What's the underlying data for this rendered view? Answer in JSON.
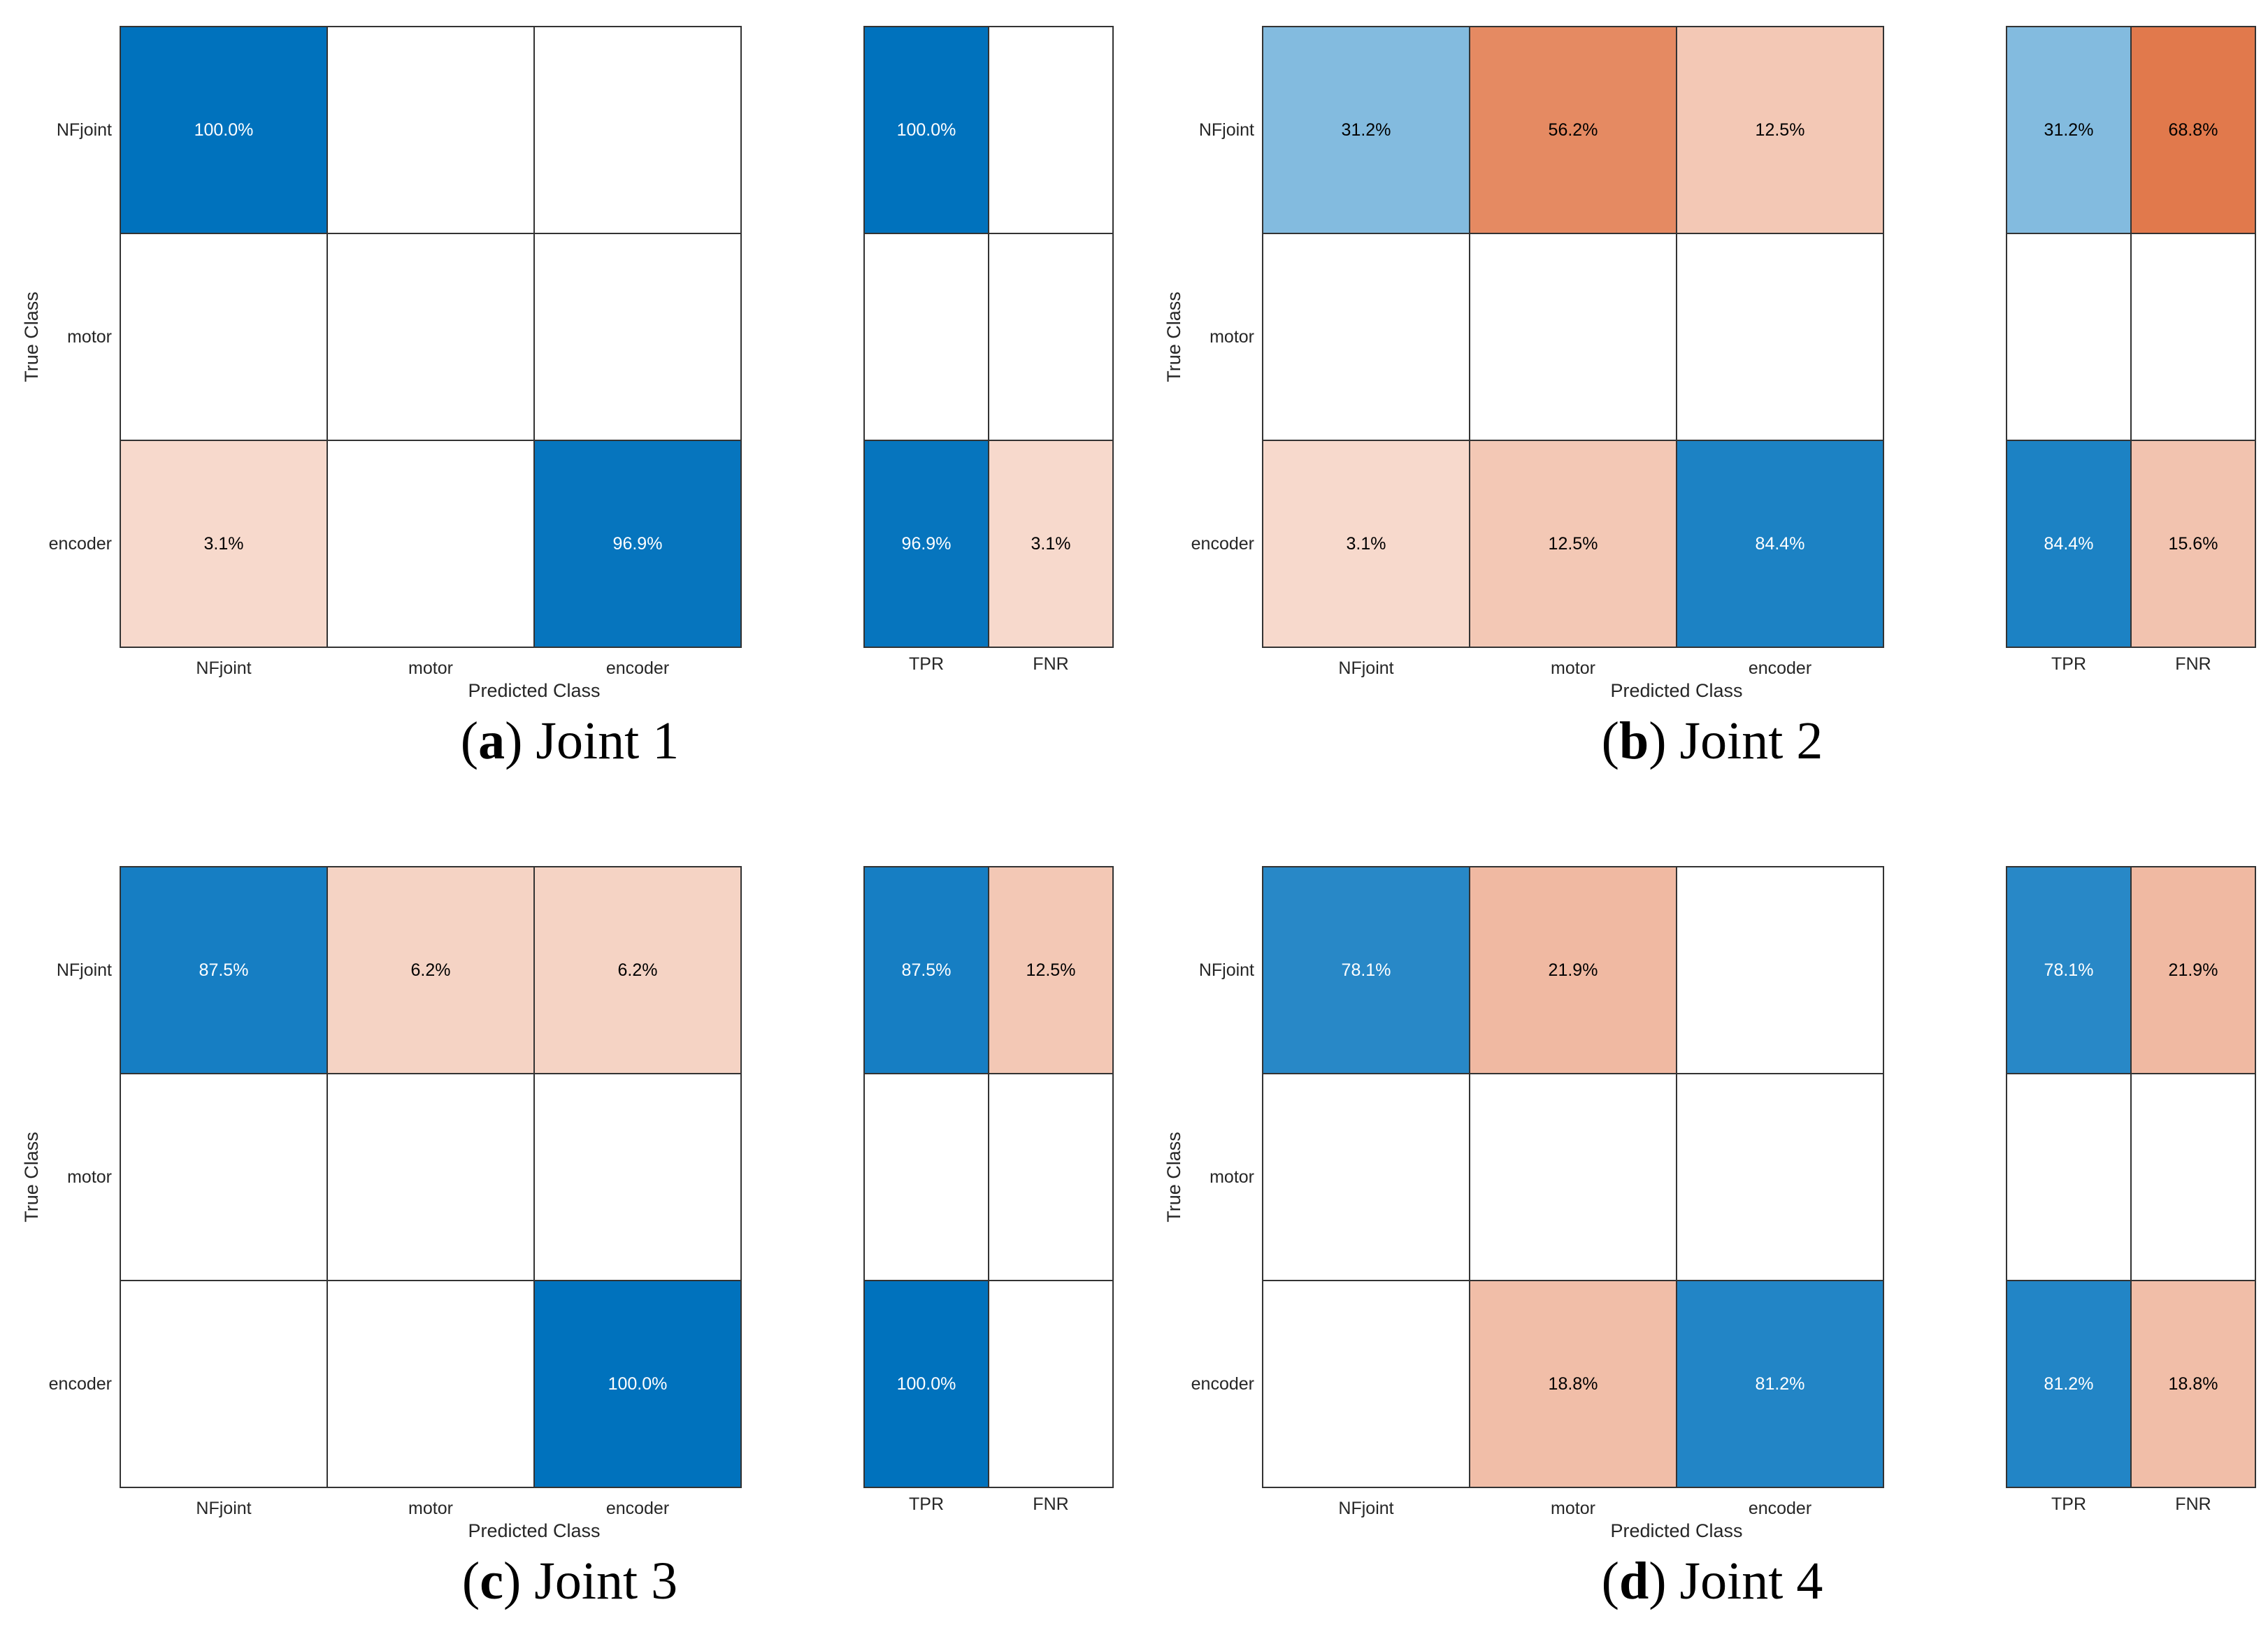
{
  "chart_data": [
    {
      "type": "heatmap",
      "caption_letter": "a",
      "caption_text": "Joint 1",
      "true_classes": [
        "NFjoint",
        "motor",
        "encoder"
      ],
      "predicted_classes": [
        "NFjoint",
        "motor",
        "encoder"
      ],
      "xlabel": "Predicted Class",
      "ylabel": "True Class",
      "matrix": [
        [
          100.0,
          null,
          null
        ],
        [
          null,
          null,
          null
        ],
        [
          3.1,
          null,
          96.9
        ]
      ],
      "summary_columns": [
        "TPR",
        "FNR"
      ],
      "summary": [
        [
          100.0,
          null
        ],
        [
          null,
          null
        ],
        [
          96.9,
          3.1
        ]
      ]
    },
    {
      "type": "heatmap",
      "caption_letter": "b",
      "caption_text": "Joint 2",
      "true_classes": [
        "NFjoint",
        "motor",
        "encoder"
      ],
      "predicted_classes": [
        "NFjoint",
        "motor",
        "encoder"
      ],
      "xlabel": "Predicted Class",
      "ylabel": "True Class",
      "matrix": [
        [
          31.2,
          56.2,
          12.5
        ],
        [
          null,
          null,
          null
        ],
        [
          3.1,
          12.5,
          84.4
        ]
      ],
      "summary_columns": [
        "TPR",
        "FNR"
      ],
      "summary": [
        [
          31.2,
          68.8
        ],
        [
          null,
          null
        ],
        [
          84.4,
          15.6
        ]
      ]
    },
    {
      "type": "heatmap",
      "caption_letter": "c",
      "caption_text": "Joint 3",
      "true_classes": [
        "NFjoint",
        "motor",
        "encoder"
      ],
      "predicted_classes": [
        "NFjoint",
        "motor",
        "encoder"
      ],
      "xlabel": "Predicted Class",
      "ylabel": "True Class",
      "matrix": [
        [
          87.5,
          6.2,
          6.2
        ],
        [
          null,
          null,
          null
        ],
        [
          null,
          null,
          100.0
        ]
      ],
      "summary_columns": [
        "TPR",
        "FNR"
      ],
      "summary": [
        [
          87.5,
          12.5
        ],
        [
          null,
          null
        ],
        [
          100.0,
          null
        ]
      ]
    },
    {
      "type": "heatmap",
      "caption_letter": "d",
      "caption_text": "Joint 4",
      "true_classes": [
        "NFjoint",
        "motor",
        "encoder"
      ],
      "predicted_classes": [
        "NFjoint",
        "motor",
        "encoder"
      ],
      "xlabel": "Predicted Class",
      "ylabel": "True Class",
      "matrix": [
        [
          78.1,
          21.9,
          null
        ],
        [
          null,
          null,
          null
        ],
        [
          null,
          18.8,
          81.2
        ]
      ],
      "summary_columns": [
        "TPR",
        "FNR"
      ],
      "summary": [
        [
          78.1,
          21.9
        ],
        [
          null,
          null
        ],
        [
          81.2,
          18.8
        ]
      ]
    }
  ],
  "colors": {
    "correct": "#0072bd",
    "incorrect": "#d95319",
    "empty": "#ffffff",
    "grid": "#333333",
    "text_dark": "#000000",
    "text_light": "#ffffff"
  }
}
